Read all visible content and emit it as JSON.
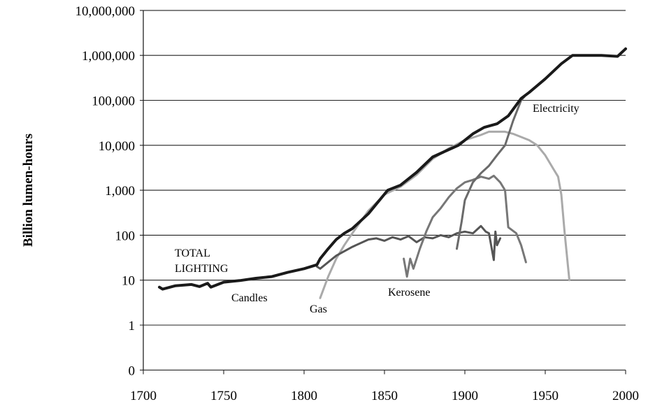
{
  "chart_data": {
    "type": "line",
    "title": "",
    "xlabel": "",
    "ylabel": "Billion lumen-hours",
    "yscale": "log",
    "xlim": [
      1700,
      2000
    ],
    "ylim_label_values": [
      0,
      1,
      10,
      100,
      1000,
      10000,
      100000,
      1000000,
      10000000
    ],
    "x_ticks": [
      "1700",
      "1750",
      "1800",
      "1850",
      "1900",
      "1950",
      "2000"
    ],
    "y_ticks": [
      "0",
      "1",
      "10",
      "100",
      "1,000",
      "10,000",
      "100,000",
      "1,000,000",
      "10,000,000"
    ],
    "grid": "horizontal",
    "series": [
      {
        "name": "TOTAL LIGHTING",
        "label": "TOTAL\nLIGHTING",
        "color": "#1a1a1a",
        "width": 4,
        "points": [
          [
            1710,
            7
          ],
          [
            1712,
            6.3
          ],
          [
            1720,
            7.5
          ],
          [
            1730,
            8
          ],
          [
            1735,
            7.2
          ],
          [
            1740,
            8.5
          ],
          [
            1742,
            7
          ],
          [
            1750,
            9
          ],
          [
            1760,
            9.8
          ],
          [
            1770,
            11
          ],
          [
            1780,
            12
          ],
          [
            1790,
            15
          ],
          [
            1800,
            18
          ],
          [
            1808,
            22
          ],
          [
            1810,
            30
          ],
          [
            1815,
            50
          ],
          [
            1820,
            80
          ],
          [
            1825,
            110
          ],
          [
            1830,
            140
          ],
          [
            1840,
            300
          ],
          [
            1852,
            1000
          ],
          [
            1860,
            1300
          ],
          [
            1870,
            2500
          ],
          [
            1880,
            5500
          ],
          [
            1890,
            8000
          ],
          [
            1896,
            10000
          ],
          [
            1905,
            18000
          ],
          [
            1912,
            25000
          ],
          [
            1920,
            30000
          ],
          [
            1927,
            45000
          ],
          [
            1935,
            110000
          ],
          [
            1940,
            150000
          ],
          [
            1950,
            300000
          ],
          [
            1960,
            650000
          ],
          [
            1967,
            1000000
          ],
          [
            1975,
            1000000
          ],
          [
            1985,
            1000000
          ],
          [
            1995,
            950000
          ],
          [
            2000,
            1400000
          ]
        ]
      },
      {
        "name": "Gas",
        "label": "Gas",
        "color": "#aaaaaa",
        "width": 3,
        "points": [
          [
            1810,
            4
          ],
          [
            1815,
            12
          ],
          [
            1820,
            30
          ],
          [
            1825,
            60
          ],
          [
            1830,
            110
          ],
          [
            1840,
            350
          ],
          [
            1850,
            800
          ],
          [
            1860,
            1200
          ],
          [
            1870,
            2200
          ],
          [
            1880,
            5000
          ],
          [
            1890,
            8500
          ],
          [
            1900,
            13000
          ],
          [
            1910,
            17000
          ],
          [
            1915,
            20000
          ],
          [
            1925,
            20000
          ],
          [
            1930,
            18000
          ],
          [
            1940,
            13000
          ],
          [
            1945,
            10000
          ],
          [
            1950,
            6000
          ],
          [
            1955,
            3000
          ],
          [
            1958,
            2000
          ],
          [
            1960,
            800
          ],
          [
            1962,
            120
          ],
          [
            1965,
            10
          ]
        ]
      },
      {
        "name": "Candles",
        "label": "Candles",
        "color": "#555555",
        "width": 3,
        "points": [
          [
            1808,
            20
          ],
          [
            1810,
            18
          ],
          [
            1820,
            35
          ],
          [
            1830,
            55
          ],
          [
            1840,
            80
          ],
          [
            1845,
            85
          ],
          [
            1850,
            75
          ],
          [
            1855,
            90
          ],
          [
            1860,
            80
          ],
          [
            1865,
            95
          ],
          [
            1870,
            70
          ],
          [
            1875,
            90
          ],
          [
            1880,
            85
          ],
          [
            1885,
            100
          ],
          [
            1890,
            90
          ],
          [
            1895,
            110
          ],
          [
            1900,
            120
          ],
          [
            1905,
            110
          ],
          [
            1910,
            160
          ],
          [
            1913,
            120
          ],
          [
            1915,
            110
          ],
          [
            1918,
            28
          ],
          [
            1919,
            120
          ],
          [
            1920,
            60
          ],
          [
            1922,
            85
          ]
        ]
      },
      {
        "name": "Kerosene",
        "label": "Kerosene",
        "color": "#777777",
        "width": 3,
        "points": [
          [
            1862,
            30
          ],
          [
            1864,
            12
          ],
          [
            1866,
            30
          ],
          [
            1868,
            18
          ],
          [
            1872,
            50
          ],
          [
            1876,
            120
          ],
          [
            1880,
            250
          ],
          [
            1885,
            400
          ],
          [
            1890,
            700
          ],
          [
            1895,
            1100
          ],
          [
            1900,
            1500
          ],
          [
            1905,
            1700
          ],
          [
            1910,
            2000
          ],
          [
            1915,
            1800
          ],
          [
            1918,
            2100
          ],
          [
            1922,
            1500
          ],
          [
            1925,
            1000
          ],
          [
            1927,
            150
          ],
          [
            1932,
            110
          ],
          [
            1935,
            60
          ],
          [
            1938,
            25
          ]
        ]
      },
      {
        "name": "Electricity",
        "label": "Electricity",
        "color": "#6a6a6a",
        "width": 3,
        "points": [
          [
            1895,
            50
          ],
          [
            1898,
            200
          ],
          [
            1900,
            600
          ],
          [
            1905,
            1500
          ],
          [
            1910,
            2400
          ],
          [
            1915,
            3500
          ],
          [
            1920,
            6000
          ],
          [
            1925,
            10000
          ],
          [
            1930,
            35000
          ],
          [
            1935,
            100000
          ],
          [
            1937,
            120000
          ]
        ]
      }
    ]
  }
}
